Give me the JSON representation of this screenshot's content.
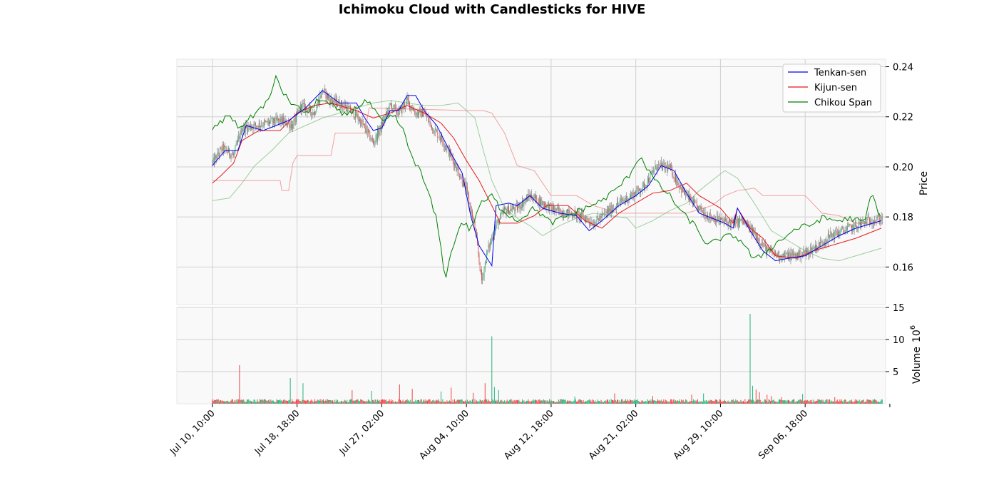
{
  "chart_data": {
    "type": "candlestick",
    "title": "Ichimoku Cloud with Candlesticks for HIVE",
    "price_panel": {
      "ylabel": "Price",
      "ylim": [
        0.145,
        0.243
      ],
      "yticks": [
        0.16,
        0.18,
        0.2,
        0.22,
        0.24
      ],
      "ytick_labels": [
        "0.16",
        "0.18",
        "0.20",
        "0.22",
        "0.24"
      ],
      "grid": true,
      "legend_position": "top-right",
      "legend": [
        "Tenkan-sen",
        "Kijun-sen",
        "Chikou Span"
      ]
    },
    "volume_panel": {
      "ylabel": "Volume",
      "ylabel_exponent": "6",
      "ylim": [
        0,
        15
      ],
      "yticks": [
        5,
        10,
        15
      ],
      "ytick_labels": [
        "5",
        "10",
        "15"
      ],
      "grid": true
    },
    "x_axis": {
      "tick_labels": [
        "Jul 10, 10:00",
        "Jul 18, 18:00",
        "Jul 27, 02:00",
        "Aug 04, 10:00",
        "Aug 12, 18:00",
        "Aug 21, 02:00",
        "Aug 29, 10:00",
        "Sep 06, 18:00"
      ],
      "tick_index": [
        0,
        100,
        200,
        300,
        400,
        500,
        600,
        700
      ],
      "xlim": [
        -42,
        795
      ],
      "n_bars": 792
    },
    "colors": {
      "up": "#26b37a",
      "down": "#ef4444",
      "tenkan": "#0000ee",
      "kijun": "#e31a1c",
      "chikou": "#008000",
      "senkou_a": "#7fbf7f",
      "senkou_b": "#f08080",
      "panel_bg": "#f9f9f9",
      "grid": "#d0d0d0"
    },
    "tenkan": [
      [
        0,
        0.2005
      ],
      [
        15,
        0.2065
      ],
      [
        30,
        0.2065
      ],
      [
        40,
        0.2165
      ],
      [
        60,
        0.2145
      ],
      [
        90,
        0.2185
      ],
      [
        110,
        0.2235
      ],
      [
        130,
        0.2305
      ],
      [
        150,
        0.2255
      ],
      [
        170,
        0.2255
      ],
      [
        180,
        0.2195
      ],
      [
        190,
        0.2145
      ],
      [
        200,
        0.2155
      ],
      [
        210,
        0.2225
      ],
      [
        220,
        0.2225
      ],
      [
        230,
        0.2285
      ],
      [
        240,
        0.2285
      ],
      [
        250,
        0.2225
      ],
      [
        265,
        0.2165
      ],
      [
        280,
        0.2065
      ],
      [
        295,
        0.1975
      ],
      [
        305,
        0.1805
      ],
      [
        315,
        0.1685
      ],
      [
        330,
        0.1605
      ],
      [
        335,
        0.1845
      ],
      [
        350,
        0.1855
      ],
      [
        360,
        0.1845
      ],
      [
        375,
        0.1885
      ],
      [
        390,
        0.1835
      ],
      [
        410,
        0.1815
      ],
      [
        430,
        0.1805
      ],
      [
        445,
        0.1745
      ],
      [
        460,
        0.1785
      ],
      [
        480,
        0.1845
      ],
      [
        500,
        0.1885
      ],
      [
        515,
        0.1925
      ],
      [
        530,
        0.2005
      ],
      [
        545,
        0.1985
      ],
      [
        560,
        0.1895
      ],
      [
        575,
        0.1815
      ],
      [
        590,
        0.1795
      ],
      [
        605,
        0.1775
      ],
      [
        615,
        0.1755
      ],
      [
        620,
        0.1835
      ],
      [
        635,
        0.1745
      ],
      [
        650,
        0.1665
      ],
      [
        665,
        0.1625
      ],
      [
        680,
        0.1635
      ],
      [
        700,
        0.1645
      ],
      [
        720,
        0.1685
      ],
      [
        740,
        0.1725
      ],
      [
        760,
        0.1755
      ],
      [
        790,
        0.1785
      ]
    ],
    "kijun": [
      [
        0,
        0.1935
      ],
      [
        10,
        0.1965
      ],
      [
        25,
        0.2015
      ],
      [
        35,
        0.2105
      ],
      [
        55,
        0.2145
      ],
      [
        80,
        0.2145
      ],
      [
        100,
        0.2215
      ],
      [
        120,
        0.2245
      ],
      [
        140,
        0.2255
      ],
      [
        170,
        0.2225
      ],
      [
        190,
        0.2195
      ],
      [
        210,
        0.2215
      ],
      [
        230,
        0.2245
      ],
      [
        250,
        0.2215
      ],
      [
        270,
        0.2175
      ],
      [
        285,
        0.2115
      ],
      [
        300,
        0.2025
      ],
      [
        315,
        0.1945
      ],
      [
        330,
        0.1845
      ],
      [
        340,
        0.1775
      ],
      [
        360,
        0.1775
      ],
      [
        380,
        0.1805
      ],
      [
        395,
        0.1845
      ],
      [
        420,
        0.1845
      ],
      [
        440,
        0.1785
      ],
      [
        460,
        0.1755
      ],
      [
        480,
        0.1815
      ],
      [
        500,
        0.1855
      ],
      [
        520,
        0.1895
      ],
      [
        540,
        0.1905
      ],
      [
        560,
        0.1935
      ],
      [
        575,
        0.1885
      ],
      [
        600,
        0.1835
      ],
      [
        615,
        0.1775
      ],
      [
        620,
        0.1835
      ],
      [
        635,
        0.1755
      ],
      [
        650,
        0.1715
      ],
      [
        665,
        0.1645
      ],
      [
        690,
        0.1635
      ],
      [
        710,
        0.1665
      ],
      [
        730,
        0.1685
      ],
      [
        760,
        0.1715
      ],
      [
        790,
        0.1755
      ]
    ],
    "chikou": [
      [
        0,
        0.2155
      ],
      [
        10,
        0.2175
      ],
      [
        20,
        0.2215
      ],
      [
        30,
        0.2155
      ],
      [
        45,
        0.2195
      ],
      [
        60,
        0.2245
      ],
      [
        70,
        0.2285
      ],
      [
        75,
        0.2365
      ],
      [
        85,
        0.2285
      ],
      [
        100,
        0.2235
      ],
      [
        115,
        0.2215
      ],
      [
        125,
        0.2275
      ],
      [
        140,
        0.2245
      ],
      [
        155,
        0.2205
      ],
      [
        170,
        0.2235
      ],
      [
        180,
        0.2265
      ],
      [
        190,
        0.2235
      ],
      [
        200,
        0.2175
      ],
      [
        215,
        0.2205
      ],
      [
        225,
        0.2145
      ],
      [
        235,
        0.2045
      ],
      [
        245,
        0.1985
      ],
      [
        255,
        0.1895
      ],
      [
        265,
        0.1785
      ],
      [
        275,
        0.1555
      ],
      [
        285,
        0.1695
      ],
      [
        295,
        0.1785
      ],
      [
        305,
        0.1745
      ],
      [
        315,
        0.1845
      ],
      [
        330,
        0.1885
      ],
      [
        340,
        0.1835
      ],
      [
        360,
        0.1785
      ],
      [
        380,
        0.1835
      ],
      [
        400,
        0.1775
      ],
      [
        420,
        0.1805
      ],
      [
        440,
        0.1835
      ],
      [
        460,
        0.1865
      ],
      [
        475,
        0.1905
      ],
      [
        490,
        0.1955
      ],
      [
        505,
        0.2045
      ],
      [
        515,
        0.1985
      ],
      [
        525,
        0.1935
      ],
      [
        540,
        0.1885
      ],
      [
        555,
        0.1815
      ],
      [
        570,
        0.1765
      ],
      [
        585,
        0.1685
      ],
      [
        600,
        0.1715
      ],
      [
        615,
        0.1725
      ],
      [
        625,
        0.1705
      ],
      [
        640,
        0.1625
      ],
      [
        655,
        0.1665
      ],
      [
        670,
        0.1705
      ],
      [
        690,
        0.1755
      ],
      [
        705,
        0.1765
      ],
      [
        720,
        0.1795
      ],
      [
        740,
        0.1785
      ],
      [
        755,
        0.1795
      ],
      [
        770,
        0.1775
      ],
      [
        778,
        0.1895
      ],
      [
        790,
        0.1795
      ]
    ],
    "senkou_a": [
      [
        0,
        0.1865
      ],
      [
        20,
        0.1875
      ],
      [
        35,
        0.1935
      ],
      [
        50,
        0.2005
      ],
      [
        70,
        0.2065
      ],
      [
        90,
        0.2135
      ],
      [
        110,
        0.2165
      ],
      [
        130,
        0.2195
      ],
      [
        150,
        0.2215
      ],
      [
        170,
        0.2235
      ],
      [
        190,
        0.2255
      ],
      [
        210,
        0.2265
      ],
      [
        230,
        0.2255
      ],
      [
        250,
        0.2245
      ],
      [
        270,
        0.2245
      ],
      [
        290,
        0.2255
      ],
      [
        300,
        0.2225
      ],
      [
        310,
        0.2195
      ],
      [
        320,
        0.2065
      ],
      [
        330,
        0.1945
      ],
      [
        345,
        0.1835
      ],
      [
        360,
        0.1795
      ],
      [
        375,
        0.1765
      ],
      [
        390,
        0.1725
      ],
      [
        410,
        0.1765
      ],
      [
        430,
        0.1795
      ],
      [
        450,
        0.1815
      ],
      [
        470,
        0.1805
      ],
      [
        490,
        0.1795
      ],
      [
        500,
        0.1755
      ],
      [
        520,
        0.1785
      ],
      [
        540,
        0.1825
      ],
      [
        560,
        0.1855
      ],
      [
        575,
        0.1905
      ],
      [
        590,
        0.1945
      ],
      [
        605,
        0.1985
      ],
      [
        620,
        0.1955
      ],
      [
        640,
        0.1855
      ],
      [
        660,
        0.1745
      ],
      [
        680,
        0.1705
      ],
      [
        700,
        0.1665
      ],
      [
        720,
        0.1635
      ],
      [
        740,
        0.1625
      ],
      [
        760,
        0.1645
      ],
      [
        790,
        0.1675
      ]
    ],
    "senkou_b": [
      [
        0,
        0.1945
      ],
      [
        30,
        0.1945
      ],
      [
        60,
        0.1945
      ],
      [
        80,
        0.1945
      ],
      [
        82,
        0.1905
      ],
      [
        90,
        0.1905
      ],
      [
        95,
        0.2015
      ],
      [
        100,
        0.2045
      ],
      [
        140,
        0.2045
      ],
      [
        145,
        0.2135
      ],
      [
        180,
        0.2135
      ],
      [
        185,
        0.2235
      ],
      [
        300,
        0.2225
      ],
      [
        320,
        0.2225
      ],
      [
        330,
        0.2215
      ],
      [
        345,
        0.2135
      ],
      [
        360,
        0.2005
      ],
      [
        380,
        0.1985
      ],
      [
        400,
        0.1885
      ],
      [
        430,
        0.1885
      ],
      [
        450,
        0.1845
      ],
      [
        480,
        0.1815
      ],
      [
        520,
        0.1815
      ],
      [
        560,
        0.1815
      ],
      [
        590,
        0.1845
      ],
      [
        605,
        0.1885
      ],
      [
        620,
        0.1905
      ],
      [
        640,
        0.1915
      ],
      [
        650,
        0.1885
      ],
      [
        700,
        0.1885
      ],
      [
        720,
        0.1815
      ],
      [
        740,
        0.1805
      ],
      [
        760,
        0.1775
      ],
      [
        790,
        0.1775
      ]
    ],
    "price_anchors": [
      [
        0,
        0.2015
      ],
      [
        12,
        0.2075
      ],
      [
        25,
        0.2045
      ],
      [
        35,
        0.2155
      ],
      [
        50,
        0.2165
      ],
      [
        65,
        0.2175
      ],
      [
        80,
        0.2185
      ],
      [
        95,
        0.2165
      ],
      [
        105,
        0.2245
      ],
      [
        120,
        0.2215
      ],
      [
        130,
        0.2305
      ],
      [
        140,
        0.2265
      ],
      [
        155,
        0.2245
      ],
      [
        170,
        0.2205
      ],
      [
        180,
        0.2155
      ],
      [
        190,
        0.2095
      ],
      [
        200,
        0.2165
      ],
      [
        210,
        0.2245
      ],
      [
        220,
        0.2215
      ],
      [
        230,
        0.2265
      ],
      [
        240,
        0.2215
      ],
      [
        250,
        0.2215
      ],
      [
        260,
        0.2155
      ],
      [
        270,
        0.2115
      ],
      [
        280,
        0.2055
      ],
      [
        290,
        0.1985
      ],
      [
        300,
        0.1905
      ],
      [
        310,
        0.1755
      ],
      [
        318,
        0.1545
      ],
      [
        325,
        0.1665
      ],
      [
        335,
        0.1765
      ],
      [
        345,
        0.1825
      ],
      [
        360,
        0.1835
      ],
      [
        375,
        0.1885
      ],
      [
        390,
        0.1855
      ],
      [
        405,
        0.1825
      ],
      [
        420,
        0.1815
      ],
      [
        435,
        0.1805
      ],
      [
        450,
        0.1775
      ],
      [
        465,
        0.1815
      ],
      [
        480,
        0.1855
      ],
      [
        495,
        0.1885
      ],
      [
        510,
        0.1925
      ],
      [
        525,
        0.2005
      ],
      [
        540,
        0.1995
      ],
      [
        555,
        0.1905
      ],
      [
        570,
        0.1845
      ],
      [
        585,
        0.1805
      ],
      [
        600,
        0.1785
      ],
      [
        615,
        0.1775
      ],
      [
        625,
        0.1785
      ],
      [
        640,
        0.1735
      ],
      [
        655,
        0.1665
      ],
      [
        670,
        0.1645
      ],
      [
        685,
        0.1645
      ],
      [
        700,
        0.1655
      ],
      [
        715,
        0.1685
      ],
      [
        730,
        0.1725
      ],
      [
        745,
        0.1745
      ],
      [
        760,
        0.1765
      ],
      [
        775,
        0.1785
      ],
      [
        790,
        0.1795
      ]
    ],
    "volume_spikes": [
      [
        32,
        6.0
      ],
      [
        92,
        4.0
      ],
      [
        107,
        3.2
      ],
      [
        165,
        2.1
      ],
      [
        188,
        2.0
      ],
      [
        221,
        3.0
      ],
      [
        236,
        2.3
      ],
      [
        270,
        1.9
      ],
      [
        282,
        2.5
      ],
      [
        308,
        1.7
      ],
      [
        322,
        3.2
      ],
      [
        330,
        10.5
      ],
      [
        333,
        2.6
      ],
      [
        338,
        2.1
      ],
      [
        428,
        1.1
      ],
      [
        475,
        1.6
      ],
      [
        520,
        1.2
      ],
      [
        566,
        1.4
      ],
      [
        580,
        1.6
      ],
      [
        635,
        14.0
      ],
      [
        638,
        2.8
      ],
      [
        642,
        2.2
      ],
      [
        646,
        1.8
      ],
      [
        655,
        1.4
      ],
      [
        660,
        1.2
      ],
      [
        672,
        1.0
      ],
      [
        697,
        1.5
      ],
      [
        735,
        1.0
      ],
      [
        795,
        0.8
      ]
    ],
    "volume_base": 0.55
  }
}
